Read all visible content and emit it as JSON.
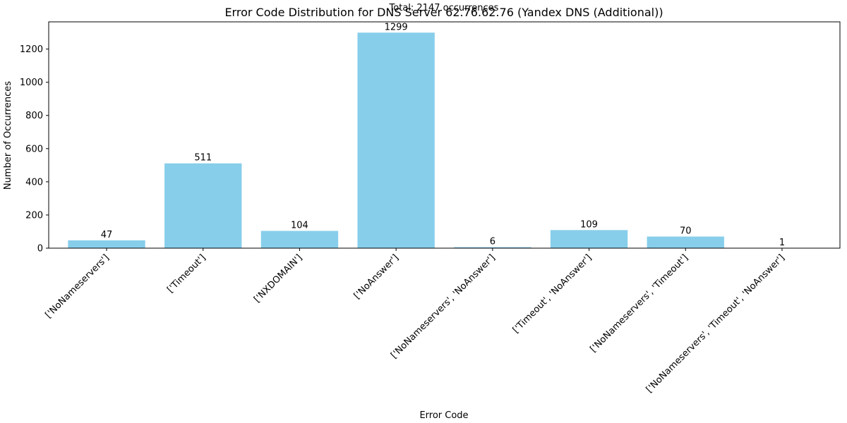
{
  "chart_data": {
    "type": "bar",
    "title": "Error Code Distribution for DNS Server 62.76.62.76 (Yandex DNS (Additional))",
    "subtitle": "Total: 2147 occurrences",
    "xlabel": "Error Code",
    "ylabel": "Number of Occurrences",
    "categories": [
      "['NoNameservers']",
      "['Timeout']",
      "['NXDOMAIN']",
      "['NoAnswer']",
      "['NoNameservers', 'NoAnswer']",
      "['Timeout', 'NoAnswer']",
      "['NoNameservers', 'Timeout']",
      "['NoNameservers', 'Timeout', 'NoAnswer']"
    ],
    "values": [
      47,
      511,
      104,
      1299,
      6,
      109,
      70,
      1
    ],
    "ylim": [
      0,
      1364
    ],
    "yticks": [
      0,
      200,
      400,
      600,
      800,
      1000,
      1200
    ],
    "bar_color": "#87ceeb",
    "grid": false
  }
}
